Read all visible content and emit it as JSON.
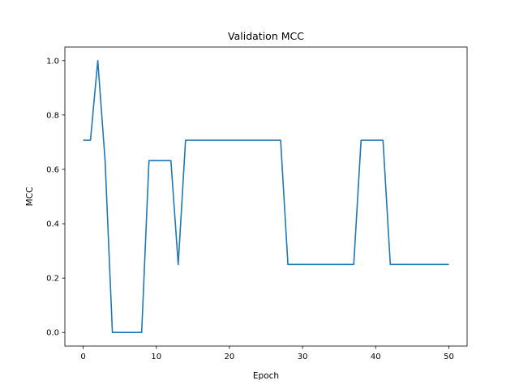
{
  "chart_data": {
    "type": "line",
    "title": "Validation MCC",
    "xlabel": "Epoch",
    "ylabel": "MCC",
    "xlim": [
      -2.5,
      52.5
    ],
    "ylim": [
      -0.05,
      1.05
    ],
    "xticks": [
      0,
      10,
      20,
      30,
      40,
      50
    ],
    "xtick_labels": [
      "0",
      "10",
      "20",
      "30",
      "40",
      "50"
    ],
    "yticks": [
      0.0,
      0.2,
      0.4,
      0.6,
      0.8,
      1.0
    ],
    "ytick_labels": [
      "0.0",
      "0.2",
      "0.4",
      "0.6",
      "0.8",
      "1.0"
    ],
    "grid": false,
    "series_color": "#1f77b4",
    "series": [
      {
        "x": [
          0,
          1,
          2,
          3,
          4,
          5,
          6,
          7,
          8,
          9,
          10,
          11,
          12,
          13,
          14,
          15,
          16,
          17,
          18,
          19,
          20,
          21,
          22,
          23,
          24,
          25,
          26,
          27,
          28,
          29,
          30,
          31,
          32,
          33,
          34,
          35,
          36,
          37,
          38,
          39,
          40,
          41,
          42,
          43,
          44,
          45,
          46,
          47,
          48,
          49,
          50
        ],
        "values": [
          0.707,
          0.707,
          1.0,
          0.632,
          0.0,
          0.0,
          0.0,
          0.0,
          0.0,
          0.632,
          0.632,
          0.632,
          0.632,
          0.25,
          0.707,
          0.707,
          0.707,
          0.707,
          0.707,
          0.707,
          0.707,
          0.707,
          0.707,
          0.707,
          0.707,
          0.707,
          0.707,
          0.707,
          0.25,
          0.25,
          0.25,
          0.25,
          0.25,
          0.25,
          0.25,
          0.25,
          0.25,
          0.25,
          0.707,
          0.707,
          0.707,
          0.707,
          0.25,
          0.25,
          0.25,
          0.25,
          0.25,
          0.25,
          0.25,
          0.25,
          0.25
        ]
      }
    ]
  }
}
